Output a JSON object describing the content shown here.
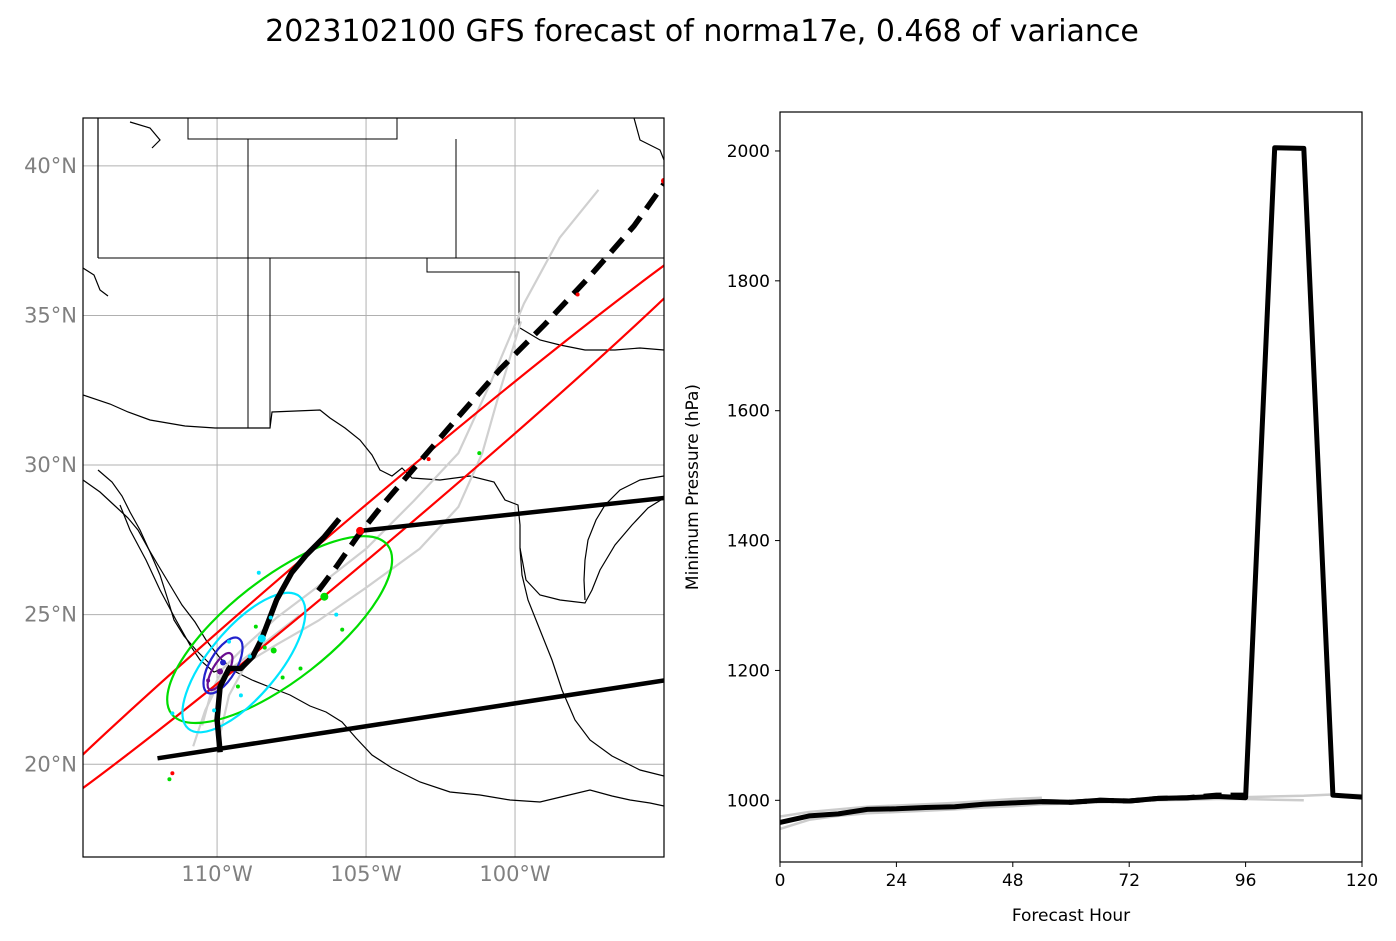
{
  "title": "2023102100 GFS forecast of norma17e, 0.468 of variance",
  "chart_data": [
    {
      "type": "map",
      "lon_range": [
        -114.5,
        -95.0
      ],
      "lat_range": [
        16.9,
        41.6
      ],
      "grid": true,
      "lat_ticks": [
        {
          "value": 40,
          "label": "40°N"
        },
        {
          "value": 35,
          "label": "35°N"
        },
        {
          "value": 30,
          "label": "30°N"
        },
        {
          "value": 25,
          "label": "25°N"
        },
        {
          "value": 20,
          "label": "20°N"
        }
      ],
      "lon_ticks": [
        {
          "value": -110,
          "label": "110°W"
        },
        {
          "value": -105,
          "label": "105°W"
        },
        {
          "value": -100,
          "label": "100°W"
        }
      ],
      "mean_track": [
        [
          -109.9,
          20.4
        ],
        [
          -110.0,
          21.5
        ],
        [
          -109.9,
          22.6
        ],
        [
          -109.6,
          23.2
        ],
        [
          -109.2,
          23.2
        ],
        [
          -108.8,
          23.6
        ],
        [
          -108.5,
          24.2
        ],
        [
          -108.0,
          25.5
        ],
        [
          -107.5,
          26.4
        ],
        [
          -107.0,
          27.0
        ],
        [
          -106.4,
          27.6
        ],
        [
          -105.9,
          28.2
        ]
      ],
      "forecast_track_dashed": [
        [
          -106.6,
          25.8
        ],
        [
          -106.0,
          26.6
        ],
        [
          -105.3,
          27.6
        ],
        [
          -104.5,
          28.6
        ],
        [
          -103.3,
          30.0
        ],
        [
          -102.0,
          31.5
        ],
        [
          -100.5,
          33.2
        ],
        [
          -99.0,
          34.7
        ],
        [
          -97.5,
          36.3
        ],
        [
          -96.0,
          38.0
        ],
        [
          -95.0,
          39.4
        ]
      ],
      "track_envelope_lines": [
        [
          [
            -112.0,
            20.2
          ],
          [
            -95.0,
            22.8
          ]
        ],
        [
          [
            -105.2,
            27.8
          ],
          [
            -95.0,
            28.9
          ]
        ]
      ],
      "member_tracks": [
        [
          [
            -110.5,
            21.3
          ],
          [
            -110.2,
            22.4
          ],
          [
            -109.8,
            23.2
          ],
          [
            -109.0,
            24.0
          ],
          [
            -108.0,
            24.9
          ],
          [
            -106.8,
            25.8
          ],
          [
            -105.0,
            27.2
          ],
          [
            -103.4,
            28.8
          ],
          [
            -101.9,
            30.4
          ],
          [
            -100.8,
            32.8
          ],
          [
            -99.7,
            35.4
          ],
          [
            -98.5,
            37.6
          ],
          [
            -97.2,
            39.2
          ]
        ],
        [
          [
            -109.9,
            21.0
          ],
          [
            -109.6,
            22.3
          ],
          [
            -109.0,
            23.4
          ],
          [
            -108.0,
            24.0
          ],
          [
            -106.6,
            24.8
          ],
          [
            -105.0,
            25.9
          ],
          [
            -103.2,
            27.2
          ],
          [
            -101.9,
            28.6
          ],
          [
            -101.1,
            30.4
          ],
          [
            -100.5,
            32.5
          ],
          [
            -99.8,
            34.8
          ]
        ],
        [
          [
            -110.8,
            20.6
          ],
          [
            -110.4,
            21.8
          ],
          [
            -109.8,
            23.0
          ],
          [
            -109.0,
            23.6
          ],
          [
            -108.1,
            24.3
          ],
          [
            -107.2,
            25.0
          ]
        ]
      ],
      "ellipses": [
        {
          "color": "#ff0000",
          "center": [
            -104.8,
            27.9
          ],
          "semi_major_deg": 15.8,
          "semi_minor_deg": 0.72,
          "angle_deg": 40.2
        },
        {
          "color": "#00dd00",
          "center": [
            -107.9,
            24.5
          ],
          "semi_major_deg": 4.6,
          "semi_minor_deg": 1.7,
          "angle_deg": 38
        },
        {
          "color": "#00e5ff",
          "center": [
            -109.1,
            23.4
          ],
          "semi_major_deg": 2.9,
          "semi_minor_deg": 1.15,
          "angle_deg": 50
        },
        {
          "color": "#2222cc",
          "center": [
            -109.8,
            23.3
          ],
          "semi_major_deg": 1.05,
          "semi_minor_deg": 0.45,
          "angle_deg": 60
        },
        {
          "color": "#6a0d91",
          "center": [
            -109.9,
            23.1
          ],
          "semi_major_deg": 0.7,
          "semi_minor_deg": 0.26,
          "angle_deg": 60
        }
      ],
      "points": [
        {
          "color": "#ff0000",
          "lon": -105.2,
          "lat": 27.8,
          "r": 4
        },
        {
          "color": "#ff0000",
          "lon": -95.0,
          "lat": 39.5,
          "r": 3
        },
        {
          "color": "#ff0000",
          "lon": -97.9,
          "lat": 35.7,
          "r": 2
        },
        {
          "color": "#ff0000",
          "lon": -102.9,
          "lat": 30.2,
          "r": 2
        },
        {
          "color": "#ff0000",
          "lon": -111.5,
          "lat": 19.7,
          "r": 2
        },
        {
          "color": "#00dd00",
          "lon": -106.4,
          "lat": 25.6,
          "r": 4
        },
        {
          "color": "#00dd00",
          "lon": -101.2,
          "lat": 30.4,
          "r": 2
        },
        {
          "color": "#00dd00",
          "lon": -105.8,
          "lat": 24.5,
          "r": 2
        },
        {
          "color": "#00dd00",
          "lon": -108.1,
          "lat": 23.8,
          "r": 3
        },
        {
          "color": "#00dd00",
          "lon": -108.7,
          "lat": 24.6,
          "r": 2
        },
        {
          "color": "#00dd00",
          "lon": -107.2,
          "lat": 23.2,
          "r": 2
        },
        {
          "color": "#00dd00",
          "lon": -109.3,
          "lat": 22.6,
          "r": 2
        },
        {
          "color": "#00dd00",
          "lon": -108.4,
          "lat": 23.9,
          "r": 2
        },
        {
          "color": "#00dd00",
          "lon": -111.6,
          "lat": 19.5,
          "r": 2
        },
        {
          "color": "#00dd00",
          "lon": -107.8,
          "lat": 22.9,
          "r": 2
        },
        {
          "color": "#00e5ff",
          "lon": -108.5,
          "lat": 24.2,
          "r": 4
        },
        {
          "color": "#00e5ff",
          "lon": -108.6,
          "lat": 26.4,
          "r": 2
        },
        {
          "color": "#00e5ff",
          "lon": -106.0,
          "lat": 25.0,
          "r": 2
        },
        {
          "color": "#00e5ff",
          "lon": -111.5,
          "lat": 21.7,
          "r": 2
        },
        {
          "color": "#00e5ff",
          "lon": -109.2,
          "lat": 22.3,
          "r": 2
        },
        {
          "color": "#00e5ff",
          "lon": -110.1,
          "lat": 21.8,
          "r": 2
        },
        {
          "color": "#00e5ff",
          "lon": -108.9,
          "lat": 23.6,
          "r": 2
        },
        {
          "color": "#00e5ff",
          "lon": -109.6,
          "lat": 24.1,
          "r": 2
        },
        {
          "color": "#00e5ff",
          "lon": -108.2,
          "lat": 24.9,
          "r": 2
        },
        {
          "color": "#2222cc",
          "lon": -109.8,
          "lat": 23.4,
          "r": 3
        },
        {
          "color": "#6a0d91",
          "lon": -109.9,
          "lat": 23.1,
          "r": 3
        },
        {
          "color": "#6a0d91",
          "lon": -110.3,
          "lat": 22.8,
          "r": 2
        }
      ]
    },
    {
      "type": "line",
      "xlabel": "Forecast Hour",
      "ylabel": "Minimum Pressure (hPa)",
      "xlim": [
        0,
        120
      ],
      "ylim": [
        905,
        2060
      ],
      "xticks": [
        0,
        24,
        48,
        72,
        96,
        120
      ],
      "yticks": [
        1000,
        1200,
        1400,
        1600,
        1800,
        2000
      ],
      "grid": false,
      "series": [
        {
          "style": "mean-solid",
          "color": "#000000",
          "x": [
            0,
            6,
            12,
            18,
            24,
            30,
            36,
            42,
            48,
            54,
            60,
            66,
            72,
            78,
            84,
            90,
            96,
            102,
            108,
            114,
            120
          ],
          "values": [
            966,
            976,
            979,
            986,
            987,
            989,
            990,
            994,
            996,
            998,
            997,
            1000,
            999,
            1003,
            1004,
            1006,
            1004,
            2005,
            2004,
            1008,
            1005
          ]
        },
        {
          "style": "mean-dashed",
          "color": "#000000",
          "x": [
            54,
            60,
            66,
            72,
            78,
            84,
            90,
            96
          ],
          "values": [
            998,
            997,
            1000,
            999,
            1003,
            1004,
            1008,
            1008
          ]
        },
        {
          "style": "member",
          "color": "#cccccc",
          "x": [
            0,
            6,
            12,
            18,
            24,
            30,
            36,
            42,
            48,
            54,
            60,
            66,
            72,
            78,
            84,
            90,
            96,
            102,
            108
          ],
          "values": [
            956,
            970,
            976,
            980,
            982,
            984,
            986,
            989,
            991,
            994,
            995,
            997,
            998,
            1000,
            1001,
            1002,
            1002,
            1001,
            1000
          ]
        },
        {
          "style": "member",
          "color": "#cccccc",
          "x": [
            0,
            6,
            12,
            18,
            24,
            30,
            36,
            42,
            48,
            54
          ],
          "values": [
            975,
            982,
            986,
            990,
            992,
            994,
            996,
            999,
            1002,
            1004
          ]
        },
        {
          "style": "member",
          "color": "#cccccc",
          "x": [
            96,
            102,
            108,
            114,
            120
          ],
          "values": [
            1005,
            1006,
            1007,
            1009,
            1008
          ]
        }
      ]
    }
  ]
}
